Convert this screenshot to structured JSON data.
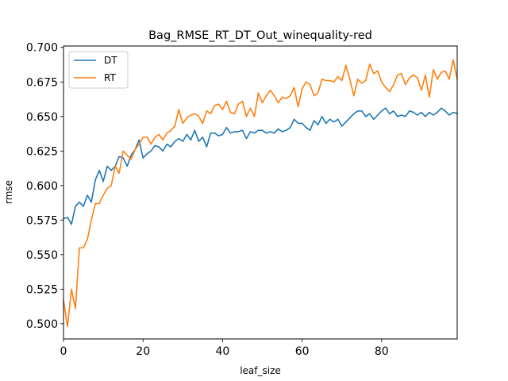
{
  "chart_data": {
    "type": "line",
    "title": "Bag_RMSE_RT_DT_Out_winequality-red",
    "xlabel": "leaf_size",
    "ylabel": "rmse",
    "xlim": [
      0,
      99
    ],
    "ylim": [
      0.489,
      0.701
    ],
    "grid": false,
    "legend_position": "top-left",
    "x_ticks": [
      0,
      20,
      40,
      60,
      80
    ],
    "x_tick_labels": [
      "0",
      "20",
      "40",
      "60",
      "80"
    ],
    "y_ticks": [
      0.5,
      0.525,
      0.55,
      0.575,
      0.6,
      0.625,
      0.65,
      0.675,
      0.7
    ],
    "y_tick_labels": [
      "0.500",
      "0.525",
      "0.550",
      "0.575",
      "0.600",
      "0.625",
      "0.650",
      "0.675",
      "0.700"
    ],
    "x": [
      0,
      1,
      2,
      3,
      4,
      5,
      6,
      7,
      8,
      9,
      10,
      11,
      12,
      13,
      14,
      15,
      16,
      17,
      18,
      19,
      20,
      21,
      22,
      23,
      24,
      25,
      26,
      27,
      28,
      29,
      30,
      31,
      32,
      33,
      34,
      35,
      36,
      37,
      38,
      39,
      40,
      41,
      42,
      43,
      44,
      45,
      46,
      47,
      48,
      49,
      50,
      51,
      52,
      53,
      54,
      55,
      56,
      57,
      58,
      59,
      60,
      61,
      62,
      63,
      64,
      65,
      66,
      67,
      68,
      69,
      70,
      71,
      72,
      73,
      74,
      75,
      76,
      77,
      78,
      79,
      80,
      81,
      82,
      83,
      84,
      85,
      86,
      87,
      88,
      89,
      90,
      91,
      92,
      93,
      94,
      95,
      96,
      97,
      98,
      99
    ],
    "series": [
      {
        "name": "DT",
        "color": "#1f77b4",
        "values": [
          0.576,
          0.577,
          0.572,
          0.585,
          0.588,
          0.585,
          0.593,
          0.588,
          0.604,
          0.611,
          0.603,
          0.614,
          0.611,
          0.614,
          0.621,
          0.62,
          0.614,
          0.622,
          0.626,
          0.633,
          0.62,
          0.623,
          0.625,
          0.629,
          0.628,
          0.625,
          0.63,
          0.628,
          0.632,
          0.634,
          0.632,
          0.637,
          0.633,
          0.64,
          0.632,
          0.635,
          0.628,
          0.638,
          0.638,
          0.636,
          0.637,
          0.642,
          0.638,
          0.639,
          0.639,
          0.64,
          0.634,
          0.639,
          0.638,
          0.64,
          0.64,
          0.638,
          0.639,
          0.638,
          0.641,
          0.639,
          0.64,
          0.642,
          0.648,
          0.645,
          0.645,
          0.642,
          0.64,
          0.647,
          0.644,
          0.65,
          0.645,
          0.648,
          0.646,
          0.648,
          0.643,
          0.646,
          0.649,
          0.652,
          0.654,
          0.654,
          0.65,
          0.652,
          0.648,
          0.651,
          0.654,
          0.656,
          0.652,
          0.654,
          0.65,
          0.651,
          0.65,
          0.654,
          0.653,
          0.651,
          0.653,
          0.65,
          0.653,
          0.651,
          0.653,
          0.656,
          0.654,
          0.651,
          0.653,
          0.652
        ]
      },
      {
        "name": "RT",
        "color": "#ff7f0e",
        "values": [
          0.517,
          0.498,
          0.525,
          0.511,
          0.555,
          0.555,
          0.561,
          0.575,
          0.587,
          0.587,
          0.593,
          0.598,
          0.6,
          0.614,
          0.609,
          0.625,
          0.622,
          0.619,
          0.626,
          0.63,
          0.635,
          0.635,
          0.63,
          0.635,
          0.637,
          0.633,
          0.638,
          0.64,
          0.643,
          0.655,
          0.645,
          0.649,
          0.651,
          0.652,
          0.65,
          0.645,
          0.654,
          0.652,
          0.658,
          0.659,
          0.655,
          0.661,
          0.653,
          0.652,
          0.659,
          0.661,
          0.65,
          0.656,
          0.65,
          0.667,
          0.66,
          0.665,
          0.669,
          0.665,
          0.66,
          0.664,
          0.663,
          0.665,
          0.671,
          0.657,
          0.67,
          0.675,
          0.673,
          0.665,
          0.667,
          0.677,
          0.676,
          0.676,
          0.675,
          0.679,
          0.676,
          0.687,
          0.677,
          0.665,
          0.677,
          0.674,
          0.676,
          0.688,
          0.681,
          0.683,
          0.675,
          0.671,
          0.668,
          0.673,
          0.68,
          0.681,
          0.673,
          0.678,
          0.68,
          0.678,
          0.669,
          0.68,
          0.664,
          0.684,
          0.677,
          0.682,
          0.683,
          0.677,
          0.691,
          0.677
        ]
      }
    ]
  }
}
